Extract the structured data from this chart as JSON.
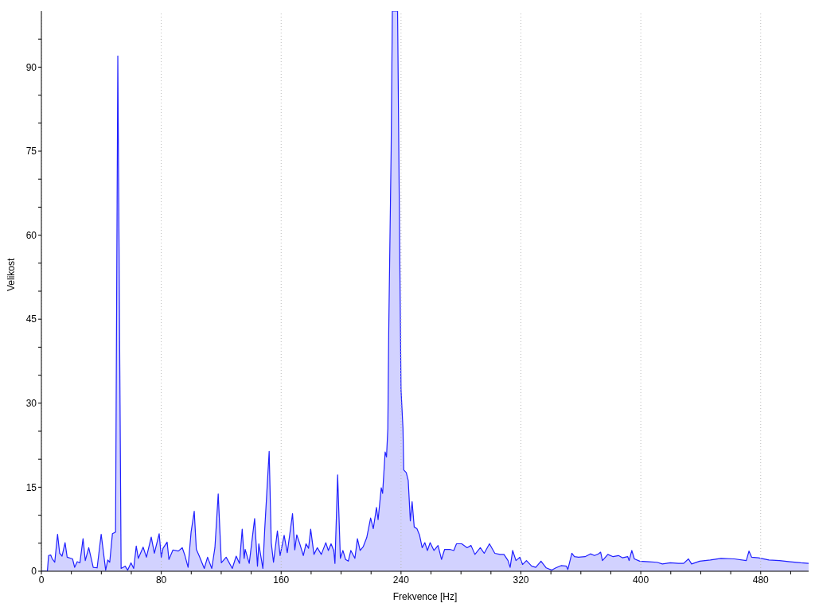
{
  "chart_data": {
    "type": "area",
    "xlabel": "Frekvence [Hz]",
    "ylabel": "Velikost",
    "xlim": [
      0,
      512
    ],
    "ylim": [
      0,
      100
    ],
    "xticks": [
      0,
      {
        "value": 20,
        "label": null
      },
      {
        "value": 40,
        "label": null
      },
      {
        "value": 60,
        "label": null
      },
      80,
      {
        "value": 100,
        "label": null
      },
      {
        "value": 120,
        "label": null
      },
      {
        "value": 140,
        "label": null
      },
      160,
      {
        "value": 180,
        "label": null
      },
      {
        "value": 200,
        "label": null
      },
      {
        "value": 220,
        "label": null
      },
      240,
      {
        "value": 260,
        "label": null
      },
      {
        "value": 280,
        "label": null
      },
      {
        "value": 300,
        "label": null
      },
      320,
      {
        "value": 340,
        "label": null
      },
      {
        "value": 360,
        "label": null
      },
      {
        "value": 380,
        "label": null
      },
      400,
      {
        "value": 420,
        "label": null
      },
      {
        "value": 440,
        "label": null
      },
      {
        "value": 460,
        "label": null
      },
      480,
      {
        "value": 500,
        "label": null
      }
    ],
    "yticks": [
      0,
      {
        "value": 5,
        "label": null
      },
      {
        "value": 10,
        "label": null
      },
      15,
      {
        "value": 20,
        "label": null
      },
      {
        "value": 25,
        "label": null
      },
      30,
      {
        "value": 35,
        "label": null
      },
      {
        "value": 40,
        "label": null
      },
      45,
      {
        "value": 50,
        "label": null
      },
      {
        "value": 55,
        "label": null
      },
      60,
      {
        "value": 65,
        "label": null
      },
      {
        "value": 70,
        "label": null
      },
      75,
      {
        "value": 80,
        "label": null
      },
      {
        "value": 85,
        "label": null
      },
      90,
      {
        "value": 95,
        "label": null
      }
    ],
    "grid": "x",
    "marker": "none",
    "line_style": "solid",
    "series": [
      {
        "color": "#2020ff",
        "x": [
          0,
          4,
          4.8,
          6.2,
          7.1,
          8.9,
          10.8,
          12.2,
          13.8,
          15.8,
          17.2,
          20.8,
          22.2,
          23.9,
          25.7,
          27.8,
          29.3,
          31.6,
          34.6,
          37.2,
          39.9,
          42.9,
          44.3,
          45.6,
          47.4,
          48.8,
          49.5,
          51,
          53.2,
          55.9,
          57.6,
          59.8,
          61.6,
          63.3,
          64.7,
          67.9,
          70.1,
          73.3,
          75.4,
          78.6,
          80,
          81.2,
          83.9,
          85.1,
          87.8,
          91.4,
          94,
          95.8,
          97.9,
          99.9,
          102,
          103.4,
          105.2,
          108.7,
          110.9,
          113.7,
          115.8,
          118,
          120.1,
          123.3,
          127.4,
          130,
          132.2,
          134,
          135.3,
          136,
          138.7,
          142.3,
          144.2,
          145.1,
          147.8,
          149,
          152,
          153.4,
          154.9,
          157.5,
          159.3,
          162,
          164.1,
          167.6,
          169.1,
          170.4,
          172.2,
          174.8,
          176.6,
          178.3,
          179.7,
          181.9,
          184.1,
          186.8,
          189.8,
          191.5,
          193.3,
          195.1,
          195.9,
          197.7,
          199.5,
          201.2,
          203,
          204.8,
          206.5,
          209.2,
          210.9,
          212.7,
          214.8,
          217.1,
          219.7,
          221.5,
          223.6,
          224.7,
          226.8,
          227.7,
          229.4,
          230.3,
          231.2,
          231.8,
          233.4,
          234.2,
          237.7,
          238.7,
          240,
          241.3,
          241.8,
          243.5,
          244.8,
          246.2,
          247.4,
          248.8,
          250.6,
          252.3,
          254.1,
          255.9,
          257.6,
          259.4,
          262,
          264.7,
          267,
          269.1,
          272.6,
          275.2,
          277,
          280.5,
          284.1,
          286.7,
          289.3,
          292.9,
          295.5,
          299,
          302.6,
          306.1,
          308.7,
          311.4,
          312.8,
          314.5,
          316.7,
          319.3,
          321.1,
          323.7,
          327.2,
          329.9,
          333.4,
          336.9,
          340.6,
          343.3,
          346.8,
          350.4,
          351.3,
          354,
          355.7,
          358.4,
          362.8,
          366.4,
          369.1,
          371.7,
          373.2,
          374.4,
          378,
          381.5,
          385.1,
          387.7,
          391.3,
          392.2,
          394,
          395.7,
          399.3,
          405.5,
          410.8,
          414.4,
          419.7,
          425.1,
          428.6,
          431.8,
          433.9,
          439.3,
          446.4,
          453.5,
          462.4,
          470.4,
          472.2,
          474,
          478.4,
          485.5,
          492.6,
          499.7,
          506.8,
          512
        ],
        "values": [
          0,
          0,
          2.8,
          2.9,
          2.3,
          1.6,
          6.6,
          3.2,
          2.7,
          5.1,
          2.5,
          2.2,
          0.7,
          1.7,
          1.5,
          5.8,
          1.9,
          4.2,
          0.7,
          0.6,
          6.6,
          0.2,
          2,
          1.6,
          6.7,
          6.9,
          7,
          92,
          0.5,
          0.9,
          0.2,
          1.5,
          0.5,
          4.5,
          2.3,
          4.3,
          2.5,
          6.1,
          3.2,
          6.7,
          2.5,
          4.1,
          5.2,
          2.1,
          3.8,
          3.6,
          4.2,
          2.8,
          0.7,
          7,
          10.7,
          3.9,
          2.8,
          0.5,
          2.5,
          0.5,
          4.2,
          13.8,
          1.5,
          2.5,
          0.5,
          2.7,
          1.4,
          7.5,
          2.3,
          3.9,
          1.4,
          9.4,
          0.9,
          4.9,
          0.5,
          7.3,
          21.4,
          5.1,
          1.6,
          7.2,
          2.8,
          6.4,
          3.3,
          10.3,
          3.8,
          6.5,
          5.1,
          2.8,
          4.9,
          4.1,
          7.5,
          3,
          4.2,
          3,
          5.1,
          3.7,
          4.9,
          3.7,
          1.4,
          17.2,
          2.3,
          3.7,
          2.1,
          1.8,
          3.7,
          2.3,
          5.8,
          3.7,
          4.4,
          6,
          9.5,
          7.6,
          11.4,
          9.2,
          14.9,
          13.9,
          21.3,
          20.4,
          25.5,
          43.1,
          75.2,
          100,
          100,
          69.8,
          32.4,
          25.5,
          18.1,
          17.6,
          16.2,
          9,
          12.4,
          7.9,
          7.6,
          6.5,
          4.2,
          5.1,
          3.7,
          5.1,
          3.7,
          4.6,
          2.1,
          3.9,
          3.9,
          3.7,
          4.9,
          4.9,
          4.2,
          4.6,
          3,
          4.2,
          3.2,
          4.9,
          3.2,
          3,
          3,
          1.9,
          0.7,
          3.7,
          1.9,
          2.5,
          1.2,
          1.9,
          0.9,
          0.7,
          1.8,
          0.6,
          0.2,
          0.6,
          1,
          0.9,
          0.3,
          3.2,
          2.6,
          2.5,
          2.6,
          3.1,
          2.8,
          3.1,
          3.4,
          1.9,
          3,
          2.6,
          2.8,
          2.4,
          2.6,
          1.9,
          3.7,
          2.2,
          1.8,
          1.7,
          1.6,
          1.3,
          1.5,
          1.4,
          1.4,
          2.2,
          1.3,
          1.8,
          2,
          2.3,
          2.2,
          1.9,
          3.6,
          2.5,
          2.4,
          2,
          1.9,
          1.7,
          1.5,
          1.4
        ]
      }
    ]
  }
}
